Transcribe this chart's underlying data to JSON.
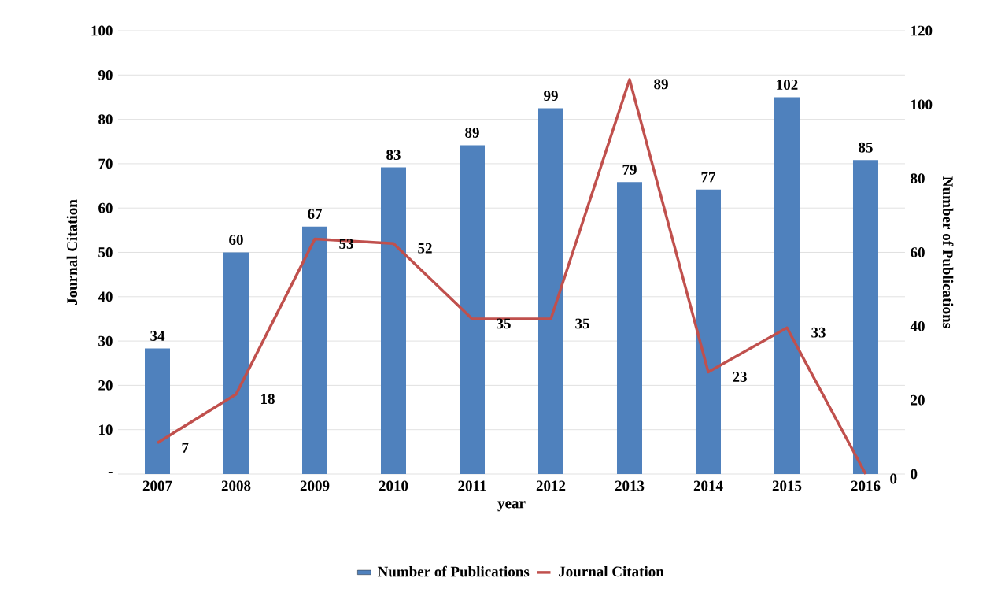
{
  "chart_data": {
    "type": "bar",
    "xlabel": "year",
    "ylabel": "Journal Citation",
    "y2label": "Number of Publications",
    "categories": [
      "2007",
      "2008",
      "2009",
      "2010",
      "2011",
      "2012",
      "2013",
      "2014",
      "2015",
      "2016"
    ],
    "series": [
      {
        "name": "Number of Publications",
        "axis": "y2",
        "color": "#4f81bd",
        "values": [
          34,
          60,
          67,
          83,
          89,
          99,
          79,
          77,
          102,
          85
        ]
      },
      {
        "name": "Journal Citation",
        "type": "line",
        "axis": "y",
        "color": "#c0504d",
        "values": [
          7,
          18,
          53,
          52,
          35,
          35,
          89,
          23,
          33,
          0
        ]
      }
    ],
    "ylim": [
      0,
      100
    ],
    "yticks": [
      {
        "value": 0,
        "label": "-"
      },
      10,
      20,
      30,
      40,
      50,
      60,
      70,
      80,
      90,
      100
    ],
    "y2lim": [
      0,
      120
    ],
    "y2ticks": [
      0,
      20,
      40,
      60,
      80,
      100,
      120
    ],
    "grid": "y",
    "legend": "bottom",
    "data_labels": true
  }
}
